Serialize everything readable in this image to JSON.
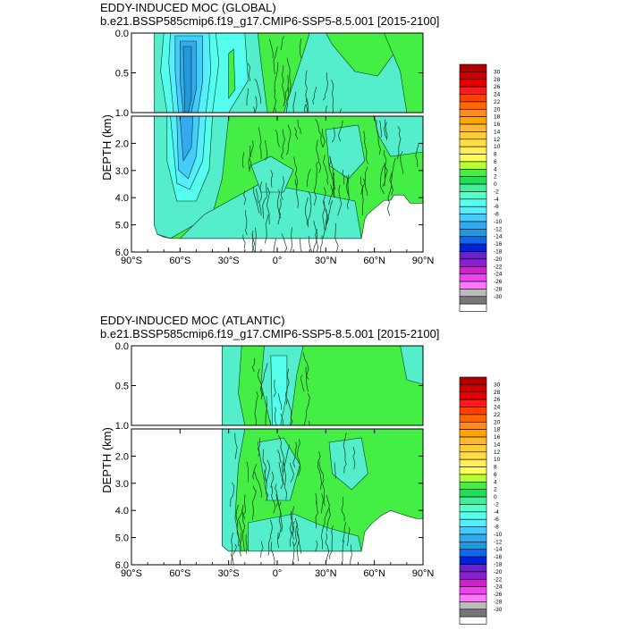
{
  "contour_colors": {
    "levels_top_to_bottom": [
      "30",
      "28",
      "26",
      "24",
      "22",
      "20",
      "18",
      "16",
      "14",
      "12",
      "10",
      "8",
      "6",
      "4",
      "2",
      "0",
      "-2",
      "-4",
      "-6",
      "-8",
      "-10",
      "-12",
      "-14",
      "-16",
      "-18",
      "-20",
      "-22",
      "-24",
      "-26",
      "-28",
      "-30"
    ],
    "box_colors_top_to_bottom": [
      "#b00000",
      "#cc0000",
      "#e60000",
      "#ff1a1a",
      "#ff4000",
      "#ff6600",
      "#ff8c1a",
      "#ffa500",
      "#ffb833",
      "#ffcc33",
      "#ffdd44",
      "#ffee55",
      "#ffff55",
      "#b8ff33",
      "#44ee44",
      "#22dd55",
      "#44ee99",
      "#55ffcc",
      "#55ffee",
      "#55eeff",
      "#44ccff",
      "#33aaee",
      "#2299dd",
      "#1166ee",
      "#0022dd",
      "#6622cc",
      "#8822cc",
      "#cc22cc",
      "#ee44ee",
      "#ff77ff",
      "#bbbbbb",
      "#777777",
      "#ffffff"
    ],
    "field_colors": {
      "pos_2": "#44ee44",
      "neg_2": "#55eecc",
      "neg_4": "#55ffee",
      "neg_6": "#55eeff",
      "neg_8": "#44ccff",
      "neg_10": "#33aaee",
      "neg_12": "#2299dd"
    }
  },
  "chart_data": [
    {
      "type": "heatmap",
      "title": "EDDY-INDUCED MOC (GLOBAL)",
      "subtitle": "b.e21.BSSP585cmip6.f19_g17.CMIP6-SSP5-8.5.001 [2015-2100]",
      "ylabel": "DEPTH (km)",
      "xlabel": "",
      "x_ticks": [
        "90°S",
        "60°S",
        "30°S",
        "0°",
        "30°N",
        "60°N",
        "90°N"
      ],
      "x_tick_values": [
        -90,
        -60,
        -30,
        0,
        30,
        60,
        90
      ],
      "y_ticks_upper": [
        "0.0",
        "0.5",
        "1.0"
      ],
      "y_ticks_lower": [
        "2.0",
        "3.0",
        "4.0",
        "5.0",
        "6.0"
      ],
      "xlim": [
        -90,
        90
      ],
      "ylim_upper": [
        0,
        1
      ],
      "ylim_lower": [
        1,
        6
      ],
      "colorbar_levels": [
        30,
        28,
        26,
        24,
        22,
        20,
        18,
        16,
        14,
        12,
        10,
        8,
        6,
        4,
        2,
        0,
        -2,
        -4,
        -6,
        -8,
        -10,
        -12,
        -14,
        -16,
        -18,
        -20,
        -22,
        -24,
        -26,
        -28,
        -30
      ],
      "bottom_profile": [
        [
          -76,
          5.0
        ],
        [
          -74,
          5.35
        ],
        [
          -70,
          5.45
        ],
        [
          -66,
          5.5
        ],
        [
          -55,
          5.5
        ],
        [
          -45,
          5.5
        ],
        [
          -35,
          5.5
        ],
        [
          -20,
          5.5
        ],
        [
          -10,
          5.5
        ],
        [
          10,
          5.5
        ],
        [
          20,
          5.5
        ],
        [
          30,
          5.5
        ],
        [
          40,
          5.5
        ],
        [
          52,
          5.5
        ],
        [
          54,
          4.8
        ],
        [
          56,
          4.6
        ],
        [
          62,
          4.3
        ],
        [
          66,
          4.1
        ],
        [
          70,
          4.1
        ],
        [
          72,
          3.9
        ],
        [
          78,
          3.9
        ],
        [
          82,
          4.2
        ],
        [
          86,
          4.2
        ],
        [
          90,
          4.2
        ]
      ],
      "northern_edge_upper": 90
    },
    {
      "type": "heatmap",
      "title": "EDDY-INDUCED MOC (ATLANTIC)",
      "subtitle": "b.e21.BSSP585cmip6.f19_g17.CMIP6-SSP5-8.5.001 [2015-2100]",
      "ylabel": "DEPTH (km)",
      "xlabel": "",
      "x_ticks": [
        "90°S",
        "60°S",
        "30°S",
        "0°",
        "30°N",
        "60°N",
        "90°N"
      ],
      "x_tick_values": [
        -90,
        -60,
        -30,
        0,
        30,
        60,
        90
      ],
      "y_ticks_upper": [
        "0.0",
        "0.5",
        "1.0"
      ],
      "y_ticks_lower": [
        "2.0",
        "3.0",
        "4.0",
        "5.0",
        "6.0"
      ],
      "xlim": [
        -90,
        90
      ],
      "ylim_upper": [
        0,
        1
      ],
      "ylim_lower": [
        1,
        6
      ],
      "colorbar_levels": [
        30,
        28,
        26,
        24,
        22,
        20,
        18,
        16,
        14,
        12,
        10,
        8,
        6,
        4,
        2,
        0,
        -2,
        -4,
        -6,
        -8,
        -10,
        -12,
        -14,
        -16,
        -18,
        -20,
        -22,
        -24,
        -26,
        -28,
        -30
      ],
      "southern_edge": -34,
      "bottom_profile": [
        [
          -34,
          5.3
        ],
        [
          -30,
          5.5
        ],
        [
          -20,
          5.5
        ],
        [
          -10,
          5.3
        ],
        [
          -5,
          5.5
        ],
        [
          10,
          5.5
        ],
        [
          30,
          5.5
        ],
        [
          40,
          5.5
        ],
        [
          52,
          5.5
        ],
        [
          54,
          4.8
        ],
        [
          58,
          4.5
        ],
        [
          64,
          4.2
        ],
        [
          70,
          4.0
        ],
        [
          80,
          4.2
        ],
        [
          86,
          4.3
        ],
        [
          90,
          4.3
        ]
      ]
    }
  ]
}
